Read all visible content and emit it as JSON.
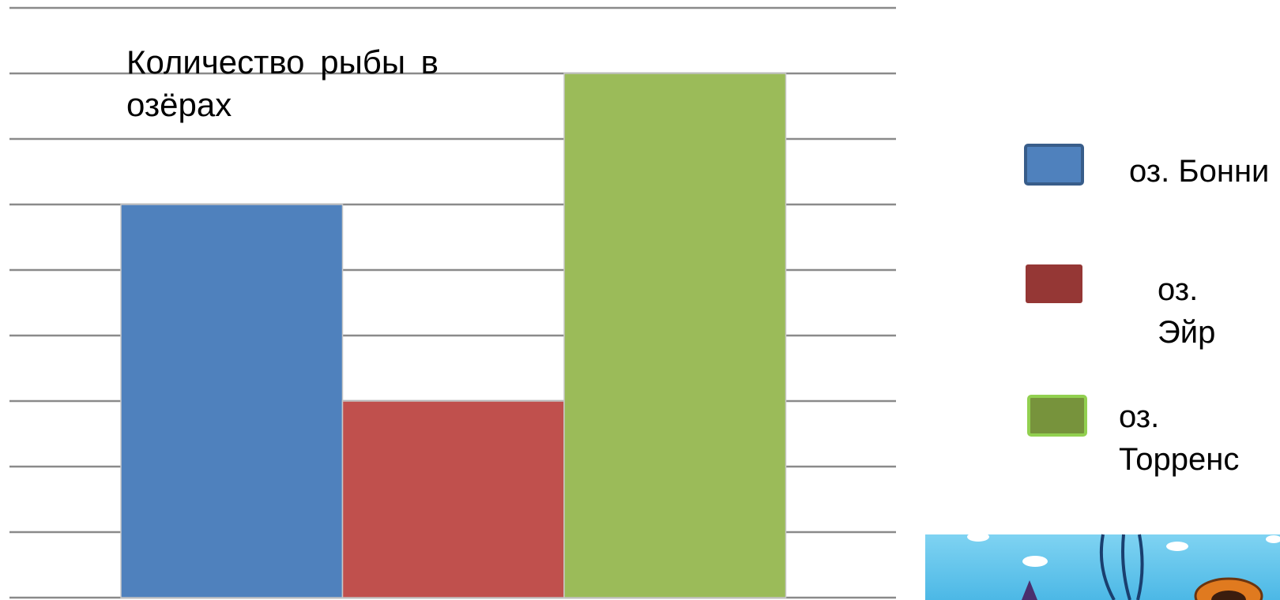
{
  "chart_data": {
    "type": "bar",
    "title": "Количество рыбы в озёрах",
    "categories": [
      null
    ],
    "series": [
      {
        "name": "оз. Бонни",
        "color": "#4f81bd",
        "legend_color": "#4f81bd",
        "values": [
          6
        ]
      },
      {
        "name": "оз. Эйр",
        "color": "#c0504d",
        "legend_color": "#953735",
        "values": [
          3
        ]
      },
      {
        "name": "оз. Торренс",
        "color": "#9bbb59",
        "legend_color": "#77933c",
        "values": [
          8
        ]
      }
    ],
    "ylim": [
      0,
      9
    ],
    "yticks": [
      0,
      1,
      2,
      3,
      4,
      5,
      6,
      7,
      8,
      9
    ],
    "grid": true
  }
}
